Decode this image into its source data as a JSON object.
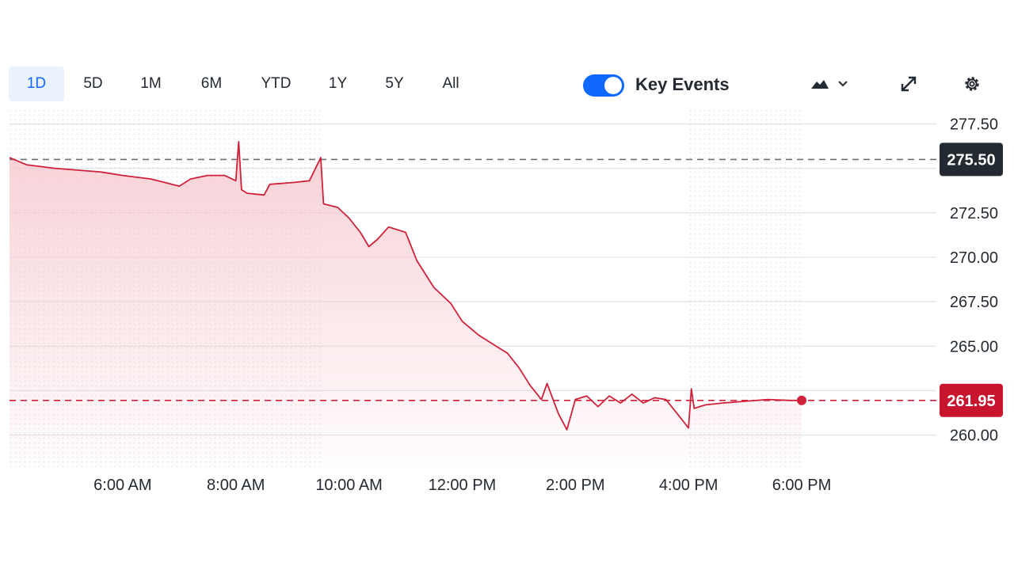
{
  "range_tabs": {
    "items": [
      {
        "label": "1D",
        "active": true
      },
      {
        "label": "5D",
        "active": false
      },
      {
        "label": "1M",
        "active": false
      },
      {
        "label": "6M",
        "active": false
      },
      {
        "label": "YTD",
        "active": false
      },
      {
        "label": "1Y",
        "active": false
      },
      {
        "label": "5Y",
        "active": false
      },
      {
        "label": "All",
        "active": false
      }
    ]
  },
  "toolbar": {
    "key_events_label": "Key Events",
    "key_events_on": true,
    "chart_type_icon": "mountain-chart-icon",
    "chevron_icon": "chevron-down-icon",
    "expand_icon": "expand-icon",
    "settings_icon": "gear-icon"
  },
  "colors": {
    "line": "#d0213a",
    "fill": "#f6c9cf",
    "grid": "#dfe2e6",
    "accent": "#0f69ff",
    "prev_close_badge": "#232a31",
    "current_badge": "#c8152d"
  },
  "chart_data": {
    "type": "area",
    "title": "",
    "xlabel": "",
    "ylabel": "",
    "ylim": [
      258.2,
      278.5
    ],
    "x_tick_labels": [
      "6:00 AM",
      "8:00 AM",
      "10:00 AM",
      "12:00 PM",
      "2:00 PM",
      "4:00 PM",
      "6:00 PM"
    ],
    "x_tick_hours": [
      6,
      8,
      10,
      12,
      14,
      16,
      18
    ],
    "x_range_hours": [
      4.0,
      18.0
    ],
    "y_ticks": [
      "277.50",
      "272.50",
      "270.00",
      "267.50",
      "265.00",
      "260.00"
    ],
    "y_tick_values": [
      277.5,
      272.5,
      270.0,
      267.5,
      265.0,
      260.0
    ],
    "previous_close": {
      "value": 275.5,
      "label": "275.50"
    },
    "current": {
      "value": 261.95,
      "label": "261.95"
    },
    "grid": true,
    "series": [
      {
        "points": [
          [
            4.0,
            275.6
          ],
          [
            4.3,
            275.2
          ],
          [
            4.8,
            275.0
          ],
          [
            5.2,
            274.9
          ],
          [
            5.6,
            274.8
          ],
          [
            6.0,
            274.6
          ],
          [
            6.5,
            274.4
          ],
          [
            7.0,
            274.0
          ],
          [
            7.2,
            274.4
          ],
          [
            7.5,
            274.6
          ],
          [
            7.8,
            274.6
          ],
          [
            8.0,
            274.3
          ],
          [
            8.05,
            276.5
          ],
          [
            8.1,
            273.8
          ],
          [
            8.2,
            273.6
          ],
          [
            8.5,
            273.5
          ],
          [
            8.6,
            274.1
          ],
          [
            9.0,
            274.2
          ],
          [
            9.3,
            274.3
          ],
          [
            9.5,
            275.6
          ],
          [
            9.55,
            273.0
          ],
          [
            9.8,
            272.8
          ],
          [
            10.0,
            272.2
          ],
          [
            10.2,
            271.4
          ],
          [
            10.35,
            270.6
          ],
          [
            10.5,
            271.0
          ],
          [
            10.7,
            271.7
          ],
          [
            11.0,
            271.4
          ],
          [
            11.2,
            269.8
          ],
          [
            11.5,
            268.3
          ],
          [
            11.8,
            267.4
          ],
          [
            12.0,
            266.4
          ],
          [
            12.3,
            265.6
          ],
          [
            12.5,
            265.2
          ],
          [
            12.8,
            264.6
          ],
          [
            13.0,
            263.8
          ],
          [
            13.2,
            262.8
          ],
          [
            13.4,
            262.0
          ],
          [
            13.5,
            262.9
          ],
          [
            13.7,
            261.2
          ],
          [
            13.85,
            260.3
          ],
          [
            14.0,
            262.0
          ],
          [
            14.2,
            262.2
          ],
          [
            14.4,
            261.6
          ],
          [
            14.6,
            262.2
          ],
          [
            14.8,
            261.8
          ],
          [
            15.0,
            262.3
          ],
          [
            15.2,
            261.8
          ],
          [
            15.4,
            262.1
          ],
          [
            15.6,
            262.0
          ],
          [
            15.8,
            261.2
          ],
          [
            16.0,
            260.4
          ],
          [
            16.05,
            262.6
          ],
          [
            16.1,
            261.5
          ],
          [
            16.3,
            261.7
          ],
          [
            16.6,
            261.8
          ],
          [
            17.0,
            261.9
          ],
          [
            17.4,
            262.0
          ],
          [
            17.8,
            261.95
          ],
          [
            18.0,
            261.95
          ]
        ]
      }
    ]
  }
}
